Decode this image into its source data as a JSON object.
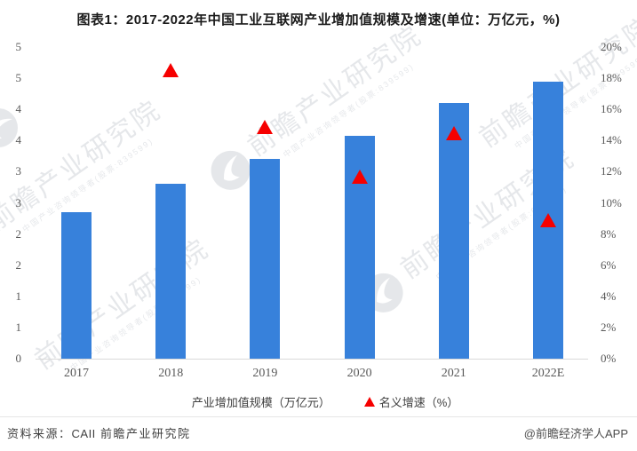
{
  "title": "图表1：2017-2022年中国工业互联网产业增加值规模及增速(单位：万亿元，%)",
  "chart_data": {
    "type": "bar",
    "combo": "bar + scatter (triangle markers) dual axis",
    "categories": [
      "2017",
      "2018",
      "2019",
      "2020",
      "2021",
      "2022E"
    ],
    "series": [
      {
        "name": "产业增加值规模（万亿元）",
        "type": "bar",
        "axis": "left",
        "color": "#3781db",
        "values": [
          2.35,
          2.8,
          3.2,
          3.57,
          4.1,
          4.45
        ]
      },
      {
        "name": "名义增速（%）",
        "type": "scatter",
        "marker": "triangle",
        "axis": "right",
        "color": "#f60000",
        "values": [
          null,
          18.5,
          14.9,
          11.7,
          14.5,
          8.9
        ]
      }
    ],
    "left_axis": {
      "range": [
        0,
        5
      ],
      "tick_labels": [
        "5",
        "5",
        "4",
        "4",
        "3",
        "3",
        "2",
        "2",
        "1",
        "1",
        "0"
      ]
    },
    "right_axis": {
      "range": [
        0,
        20
      ],
      "tick_labels": [
        "20%",
        "18%",
        "16%",
        "14%",
        "12%",
        "10%",
        "8%",
        "6%",
        "4%",
        "2%",
        "0%"
      ]
    },
    "grid": false,
    "legend_position": "bottom"
  },
  "legend": {
    "items": [
      {
        "label": "产业增加值规模（万亿元）",
        "marker": "square",
        "color": "#3781db"
      },
      {
        "label": "名义增速（%）",
        "marker": "triangle",
        "color": "#f60000"
      }
    ]
  },
  "footer": {
    "source_label": "资料来源：",
    "source_org1": "CAII",
    "source_org2": "前瞻产业研究院",
    "credit": "@前瞻经济学人APP"
  },
  "watermark": {
    "brand": "前瞻产业研究院",
    "tagline": "中国产业咨询领导者(股票:839599)"
  },
  "colors": {
    "bar": "#3781db",
    "marker": "#f60000",
    "axis_text": "#595959",
    "axis_line": "#d9d9d9",
    "title_text": "#1a1a1a",
    "footer_text": "#404040",
    "source_org1_text": "#8a9ab0"
  }
}
